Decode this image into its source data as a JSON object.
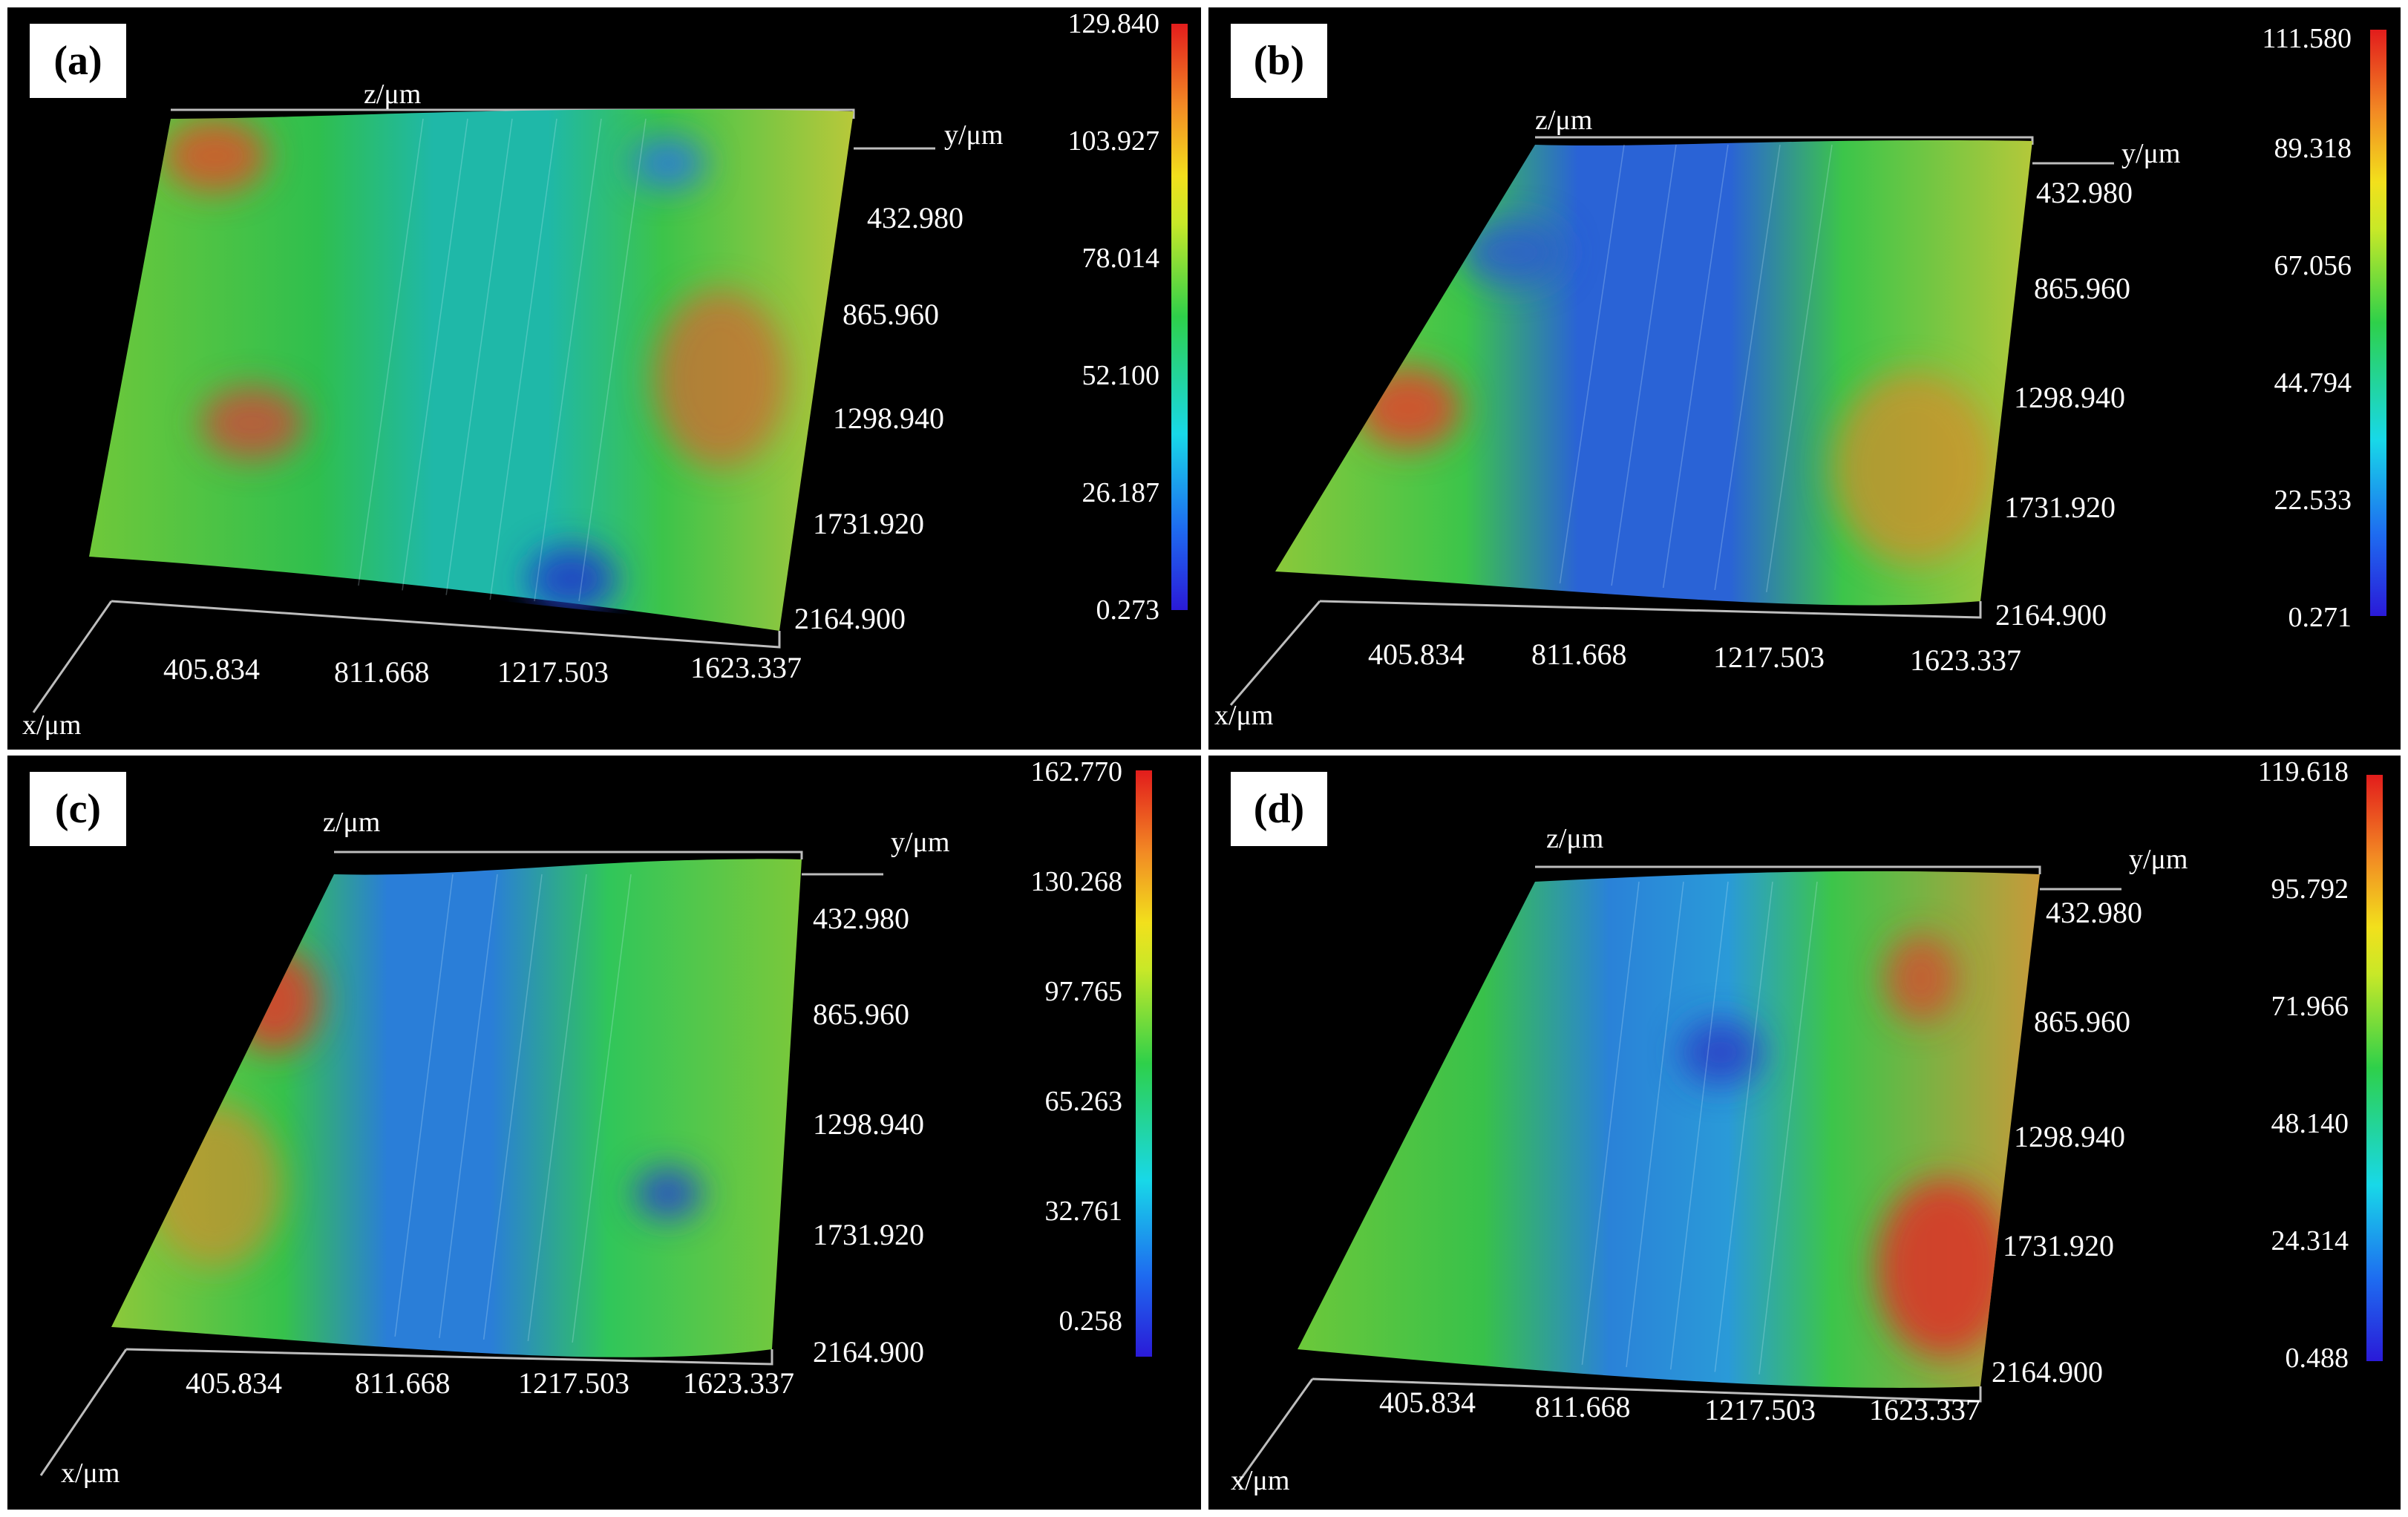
{
  "axis_names": {
    "x": "x/μm",
    "y": "y/μm",
    "z": "z/μm"
  },
  "x_ticks": [
    "405.834",
    "811.668",
    "1217.503",
    "1623.337"
  ],
  "y_ticks": [
    "432.980",
    "865.960",
    "1298.940",
    "1731.920",
    "2164.900"
  ],
  "colormap": [
    "#2a1ad8",
    "#18d8e8",
    "#2ed04a",
    "#f2e01c",
    "#e21c1c"
  ],
  "panels": [
    {
      "tag": "(a)",
      "colorbar": [
        "129.840",
        "103.927",
        "78.014",
        "52.100",
        "26.187",
        "0.273"
      ],
      "surface_base": "#2fbf4e",
      "center_tone": "#1fb8a8",
      "hotspots": [
        {
          "color": "#d9542a"
        },
        {
          "color": "#c8503a"
        },
        {
          "color": "#d06a30"
        },
        {
          "color": "#2040c8"
        },
        {
          "color": "#2e7ad8"
        }
      ]
    },
    {
      "tag": "(b)",
      "colorbar": [
        "111.580",
        "89.318",
        "67.056",
        "44.794",
        "22.533",
        "0.271"
      ],
      "surface_base": "#3cc54a",
      "center_tone": "#2a63d6",
      "hotspots": [
        {
          "color": "#d94a2c"
        },
        {
          "color": "#d98a2a"
        },
        {
          "color": "#2a5ad0"
        }
      ]
    },
    {
      "tag": "(c)",
      "colorbar": [
        "162.770",
        "130.268",
        "97.765",
        "65.263",
        "32.761",
        "0.258"
      ],
      "surface_base": "#36c24c",
      "center_tone": "#2a7ed8",
      "hotspots": [
        {
          "color": "#d8402c"
        },
        {
          "color": "#d98a2a"
        },
        {
          "color": "#2a4ac8"
        }
      ]
    },
    {
      "tag": "(d)",
      "colorbar": [
        "119.618",
        "95.792",
        "71.966",
        "48.140",
        "24.314",
        "0.488"
      ],
      "surface_base": "#38c14a",
      "center_tone": "#2a82d8",
      "hotspots": [
        {
          "color": "#d8382a"
        },
        {
          "color": "#d8462c"
        },
        {
          "color": "#2a3ec6"
        }
      ]
    }
  ]
}
